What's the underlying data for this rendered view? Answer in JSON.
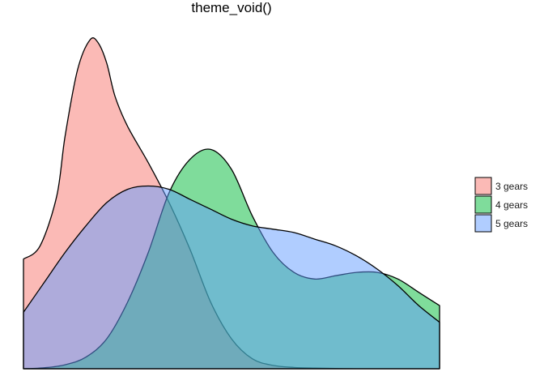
{
  "chart_data": {
    "type": "area",
    "title": "theme_void()",
    "xlabel": "",
    "ylabel": "",
    "xlim": [
      0,
      1
    ],
    "ylim": [
      0,
      1
    ],
    "grid": false,
    "axes_visible": false,
    "legend_position": "right",
    "fill_alpha": 0.5,
    "series": [
      {
        "name": "3 gears",
        "color": "#F8766D",
        "x": [
          0,
          0.04,
          0.08,
          0.1,
          0.13,
          0.16,
          0.18,
          0.2,
          0.22,
          0.25,
          0.3,
          0.35,
          0.4,
          0.45,
          0.5,
          0.55,
          0.6,
          0.65,
          0.7,
          0.75,
          0.8,
          0.9,
          1.0
        ],
        "y": [
          0.33,
          0.37,
          0.52,
          0.7,
          0.9,
          0.99,
          0.98,
          0.92,
          0.82,
          0.73,
          0.62,
          0.5,
          0.36,
          0.2,
          0.09,
          0.03,
          0.01,
          0.004,
          0.002,
          0.001,
          0.0,
          0.0,
          0.0
        ]
      },
      {
        "name": "4 gears",
        "color": "#00BA38",
        "x": [
          0,
          0.05,
          0.1,
          0.15,
          0.2,
          0.25,
          0.3,
          0.35,
          0.4,
          0.45,
          0.5,
          0.55,
          0.6,
          0.65,
          0.7,
          0.75,
          0.8,
          0.85,
          0.9,
          0.95,
          1.0
        ],
        "y": [
          0.0,
          0.003,
          0.012,
          0.035,
          0.09,
          0.2,
          0.35,
          0.53,
          0.63,
          0.66,
          0.6,
          0.46,
          0.35,
          0.29,
          0.27,
          0.28,
          0.29,
          0.29,
          0.27,
          0.23,
          0.19
        ]
      },
      {
        "name": "5 gears",
        "color": "#619CFF",
        "x": [
          0,
          0.05,
          0.1,
          0.15,
          0.2,
          0.25,
          0.3,
          0.35,
          0.4,
          0.45,
          0.5,
          0.55,
          0.6,
          0.65,
          0.7,
          0.75,
          0.8,
          0.85,
          0.9,
          0.95,
          1.0
        ],
        "y": [
          0.17,
          0.26,
          0.35,
          0.43,
          0.5,
          0.54,
          0.55,
          0.54,
          0.51,
          0.48,
          0.45,
          0.43,
          0.42,
          0.41,
          0.39,
          0.37,
          0.34,
          0.3,
          0.25,
          0.19,
          0.14
        ]
      }
    ]
  }
}
